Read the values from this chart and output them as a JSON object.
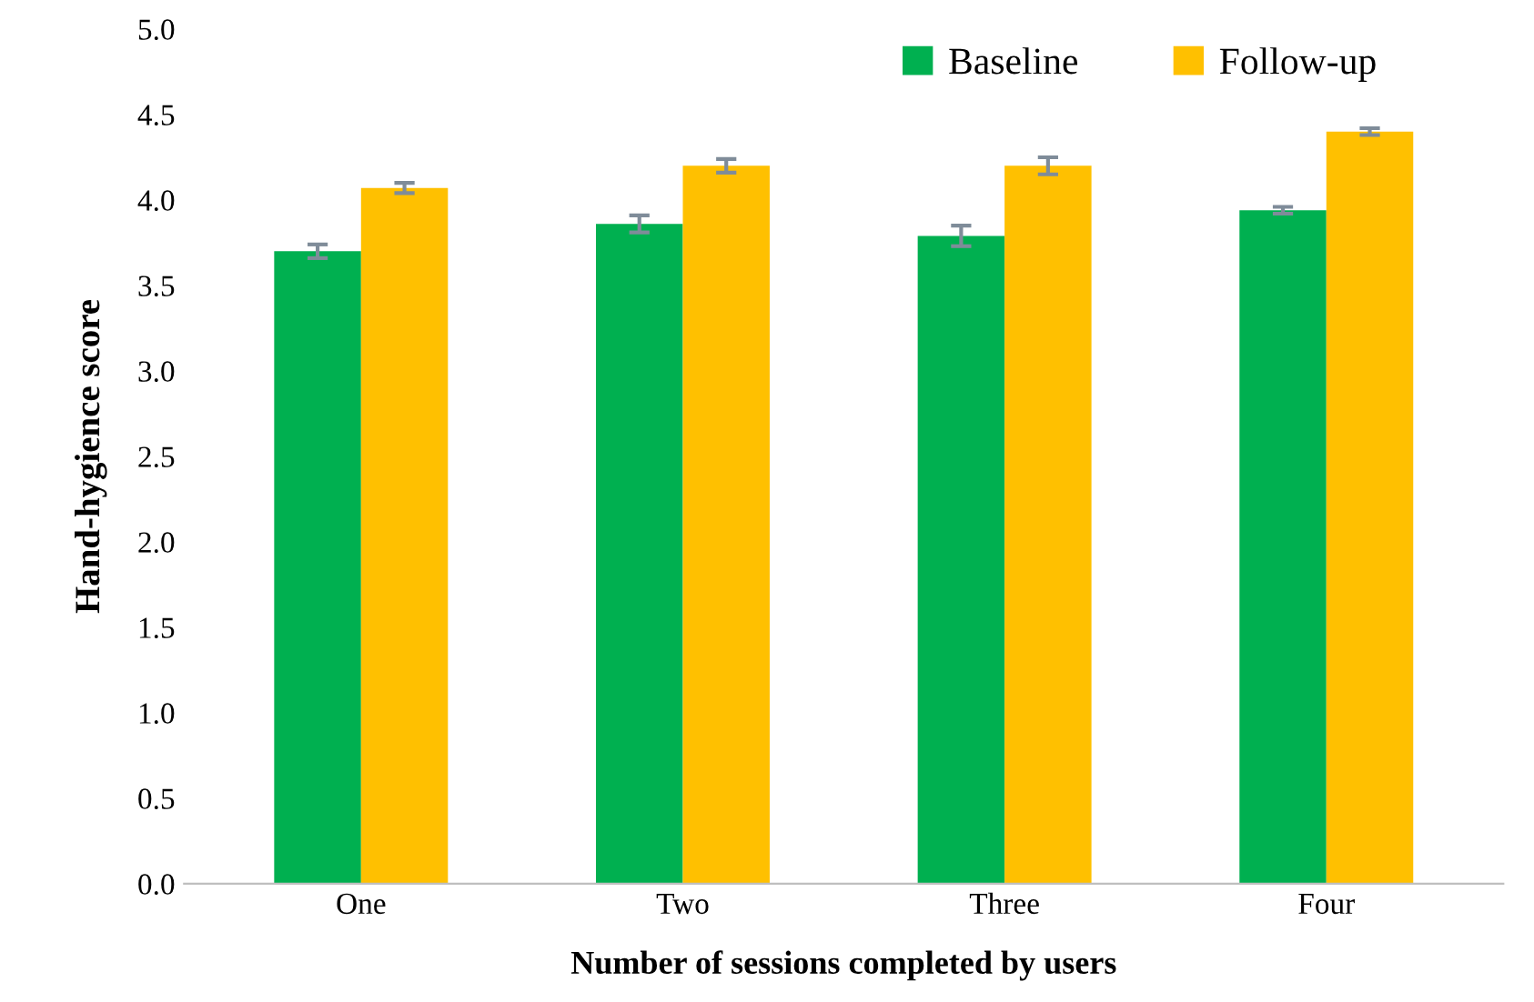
{
  "chart_data": {
    "type": "bar",
    "xlabel": "Number of sessions completed by users",
    "ylabel": "Hand-hygience score",
    "categories": [
      "One",
      "Two",
      "Three",
      "Four"
    ],
    "series": [
      {
        "name": "Baseline",
        "color": "#00b050",
        "values": [
          3.7,
          3.86,
          3.79,
          3.94
        ],
        "errors": [
          0.04,
          0.05,
          0.06,
          0.02
        ]
      },
      {
        "name": "Follow-up",
        "color": "#ffc000",
        "values": [
          4.07,
          4.2,
          4.2,
          4.4
        ],
        "errors": [
          0.03,
          0.04,
          0.05,
          0.02
        ]
      }
    ],
    "ylim": [
      0,
      5
    ],
    "yticks": [
      {
        "value": 0,
        "label": "0.0"
      },
      {
        "value": 0.5,
        "label": "0.5"
      },
      {
        "value": 1,
        "label": "1.0"
      },
      {
        "value": 1.5,
        "label": "1.5"
      },
      {
        "value": 2,
        "label": "2.0"
      },
      {
        "value": 2.5,
        "label": "2.5"
      },
      {
        "value": 3,
        "label": "3.0"
      },
      {
        "value": 3.5,
        "label": "3.5"
      },
      {
        "value": 4,
        "label": "4.0"
      },
      {
        "value": 4.5,
        "label": "4.5"
      },
      {
        "value": 5,
        "label": "5.0"
      }
    ],
    "grid": false,
    "legend": "top right"
  }
}
